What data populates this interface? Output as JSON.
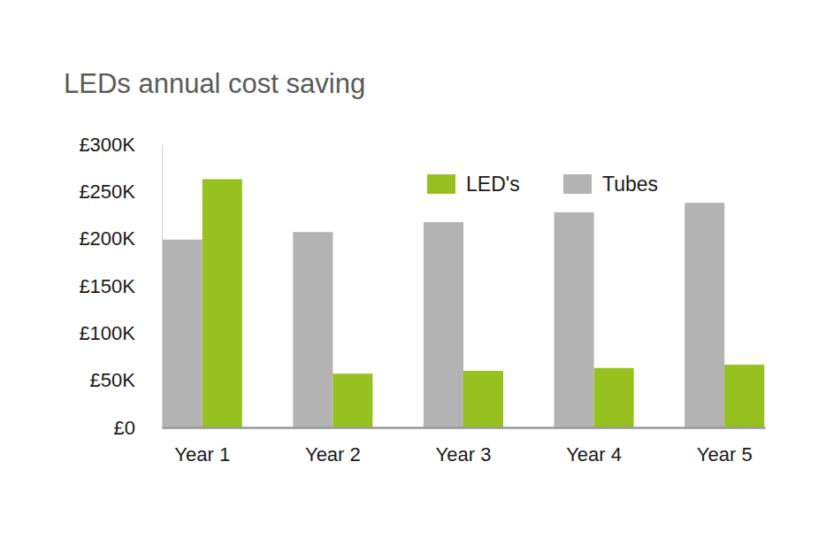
{
  "chart_data": {
    "type": "bar",
    "title": "LEDs annual cost saving",
    "categories": [
      "Year 1",
      "Year 2",
      "Year 3",
      "Year 4",
      "Year 5"
    ],
    "series": [
      {
        "name": "Tubes",
        "color": "#b3b3b3",
        "values": [
          199000,
          207000,
          217500,
          228000,
          238000
        ]
      },
      {
        "name": "LED's",
        "color": "#97c11f",
        "values": [
          263000,
          57000,
          60000,
          63000,
          66500
        ]
      }
    ],
    "ylim": [
      0,
      300000
    ],
    "yticks": [
      {
        "value": 0,
        "label": "£0"
      },
      {
        "value": 50000,
        "label": "£50K"
      },
      {
        "value": 100000,
        "label": "£100K"
      },
      {
        "value": 150000,
        "label": "£150K"
      },
      {
        "value": 200000,
        "label": "£200K"
      },
      {
        "value": 250000,
        "label": "£250K"
      },
      {
        "value": 300000,
        "label": "£300K"
      }
    ],
    "grid": false,
    "legend": "upper right"
  }
}
